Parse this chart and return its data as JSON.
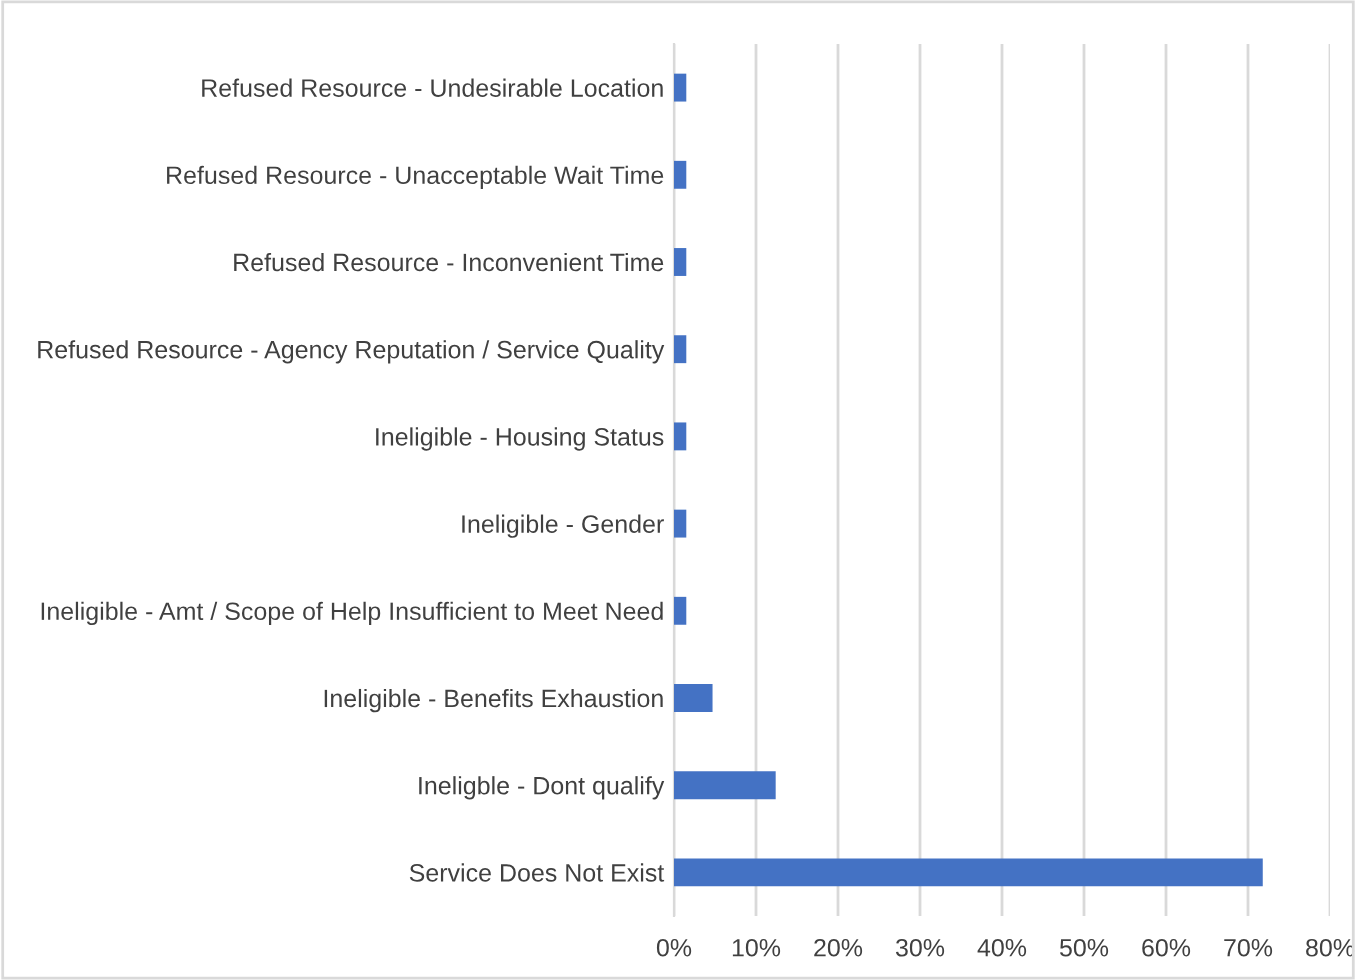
{
  "chart_data": {
    "type": "bar",
    "orientation": "horizontal",
    "categories": [
      "Refused Resource - Undesirable Location",
      "Refused Resource - Unacceptable Wait Time",
      "Refused Resource - Inconvenient Time",
      "Refused Resource - Agency Reputation / Service Quality",
      "Ineligible - Housing Status",
      "Ineligible - Gender",
      "Ineligible - Amt / Scope of Help Insufficient to Meet Need",
      "Ineligible - Benefits Exhaustion",
      "Ineligble - Dont qualify",
      "Service Does Not Exist"
    ],
    "values": [
      1.5,
      1.5,
      1.5,
      1.5,
      1.5,
      1.5,
      1.5,
      4.7,
      12.4,
      71.8
    ],
    "color": "#4472c4",
    "xlim": [
      0,
      80
    ],
    "xticks": [
      {
        "value": 0,
        "label": "0%"
      },
      {
        "value": 10,
        "label": "10%"
      },
      {
        "value": 20,
        "label": "20%"
      },
      {
        "value": 30,
        "label": "30%"
      },
      {
        "value": 40,
        "label": "40%"
      },
      {
        "value": 50,
        "label": "50%"
      },
      {
        "value": 60,
        "label": "60%"
      },
      {
        "value": 70,
        "label": "70%"
      },
      {
        "value": 80,
        "label": "80%"
      }
    ],
    "grid": "x",
    "legend": false
  }
}
